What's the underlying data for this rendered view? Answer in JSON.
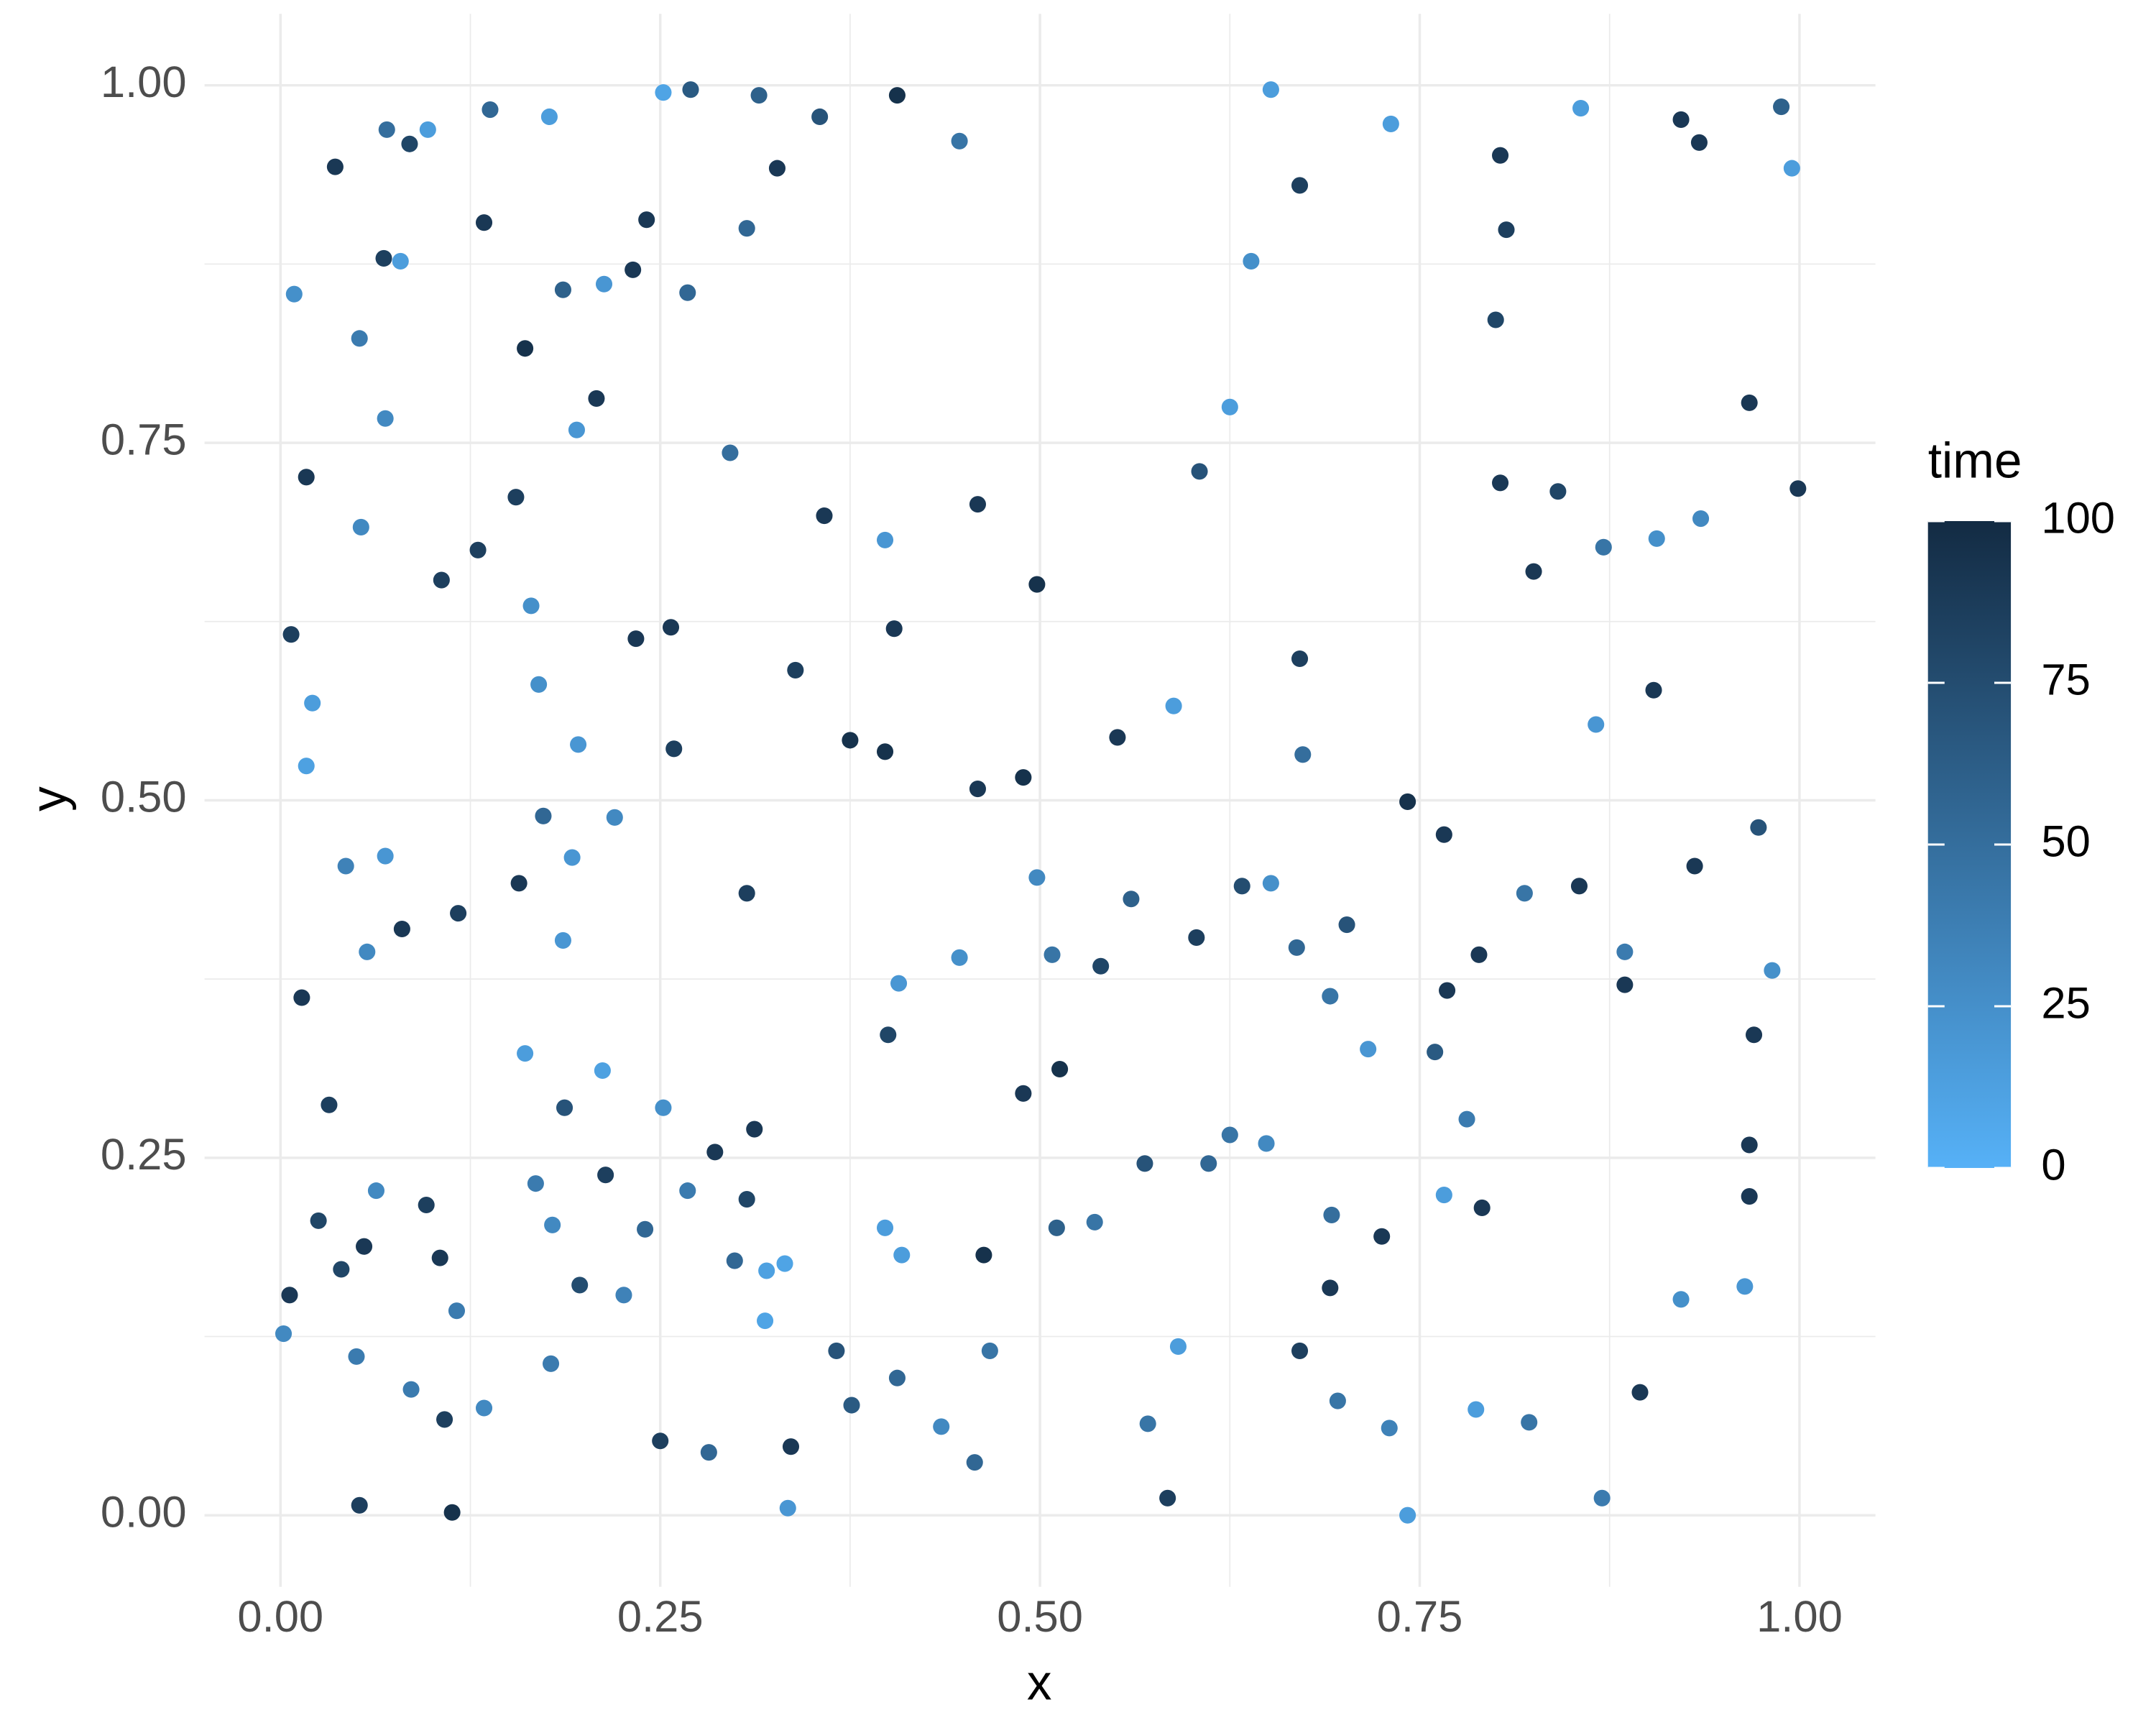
{
  "chart_data": {
    "type": "scatter",
    "x_label": "x",
    "y_label": "y",
    "xlim": [
      -0.05,
      1.05
    ],
    "ylim": [
      -0.05,
      1.05
    ],
    "xticks": [
      {
        "value": 0,
        "label": "0.00"
      },
      {
        "value": 0.25,
        "label": "0.25"
      },
      {
        "value": 0.5,
        "label": "0.50"
      },
      {
        "value": 0.75,
        "label": "0.75"
      },
      {
        "value": 1,
        "label": "1.00"
      }
    ],
    "yticks": [
      {
        "value": 0,
        "label": "0.00"
      },
      {
        "value": 0.25,
        "label": "0.25"
      },
      {
        "value": 0.5,
        "label": "0.50"
      },
      {
        "value": 0.75,
        "label": "0.75"
      },
      {
        "value": 1,
        "label": "1.00"
      }
    ],
    "grid": true,
    "minor_grid": true,
    "legend": "right",
    "color_scale": {
      "title": "time",
      "lim": [
        0,
        100
      ],
      "ticks": [
        0,
        25,
        50,
        75,
        100
      ],
      "low": "#56B1F7",
      "high": "#132B43"
    },
    "series": [
      {
        "x": [
          0.009,
          0.017,
          0.007,
          0.021,
          0.017,
          0.014,
          0.032,
          0.025,
          0.006,
          0.002,
          0.052,
          0.113,
          0.036,
          0.07,
          0.085,
          0.097,
          0.138,
          0.177,
          0.252,
          0.27,
          0.315,
          0.355,
          0.406,
          0.447,
          0.241,
          0.068,
          0.079,
          0.134,
          0.161,
          0.186,
          0.213,
          0.232,
          0.268,
          0.307,
          0.327,
          0.052,
          0.069,
          0.053,
          0.106,
          0.13,
          0.155,
          0.165,
          0.17,
          0.196,
          0.234,
          0.208,
          0.195,
          0.257,
          0.259,
          0.296,
          0.339,
          0.358,
          0.398,
          0.375,
          0.398,
          0.459,
          0.498,
          0.551,
          0.588,
          0.605,
          0.625,
          0.639,
          0.652,
          0.671,
          0.731,
          0.803,
          0.807,
          0.8,
          0.856,
          0.922,
          0.934,
          0.988,
          0.995,
          0.967,
          0.999,
          0.935,
          0.904,
          0.931,
          0.973,
          0.982,
          0.97,
          0.967,
          0.967,
          0.964,
          0.922,
          0.895,
          0.87,
          0.742,
          0.73,
          0.787,
          0.822,
          0.791,
          0.766,
          0.781,
          0.76,
          0.716,
          0.789,
          0.768,
          0.766,
          0.742,
          0.673,
          0.671,
          0.803,
          0.841,
          0.825,
          0.871,
          0.906,
          0.866,
          0.885,
          0.885,
          0.855,
          0.819,
          0.671,
          0.584,
          0.571,
          0.591,
          0.611,
          0.625,
          0.649,
          0.696,
          0.463,
          0.489,
          0.513,
          0.511,
          0.536,
          0.569,
          0.32,
          0.332,
          0.319,
          0.299,
          0.286,
          0.312,
          0.307,
          0.268,
          0.24,
          0.214,
          0.226,
          0.212,
          0.187,
          0.161,
          0.168,
          0.197,
          0.179,
          0.178,
          0.108,
          0.116,
          0.105,
          0.096,
          0.063,
          0.055,
          0.04,
          0.05,
          0.086,
          0.134,
          0.25,
          0.282,
          0.334,
          0.336,
          0.366,
          0.376,
          0.406,
          0.435,
          0.457,
          0.467,
          0.398,
          0.409,
          0.4,
          0.407,
          0.447,
          0.498,
          0.508,
          0.54,
          0.56,
          0.603,
          0.633,
          0.652,
          0.669,
          0.691,
          0.702,
          0.459,
          0.489,
          0.404,
          0.307,
          0.22,
          0.192,
          0.173,
          0.186,
          0.157,
          0.117,
          0.08,
          0.057,
          0.043,
          0.069,
          0.252,
          0.725,
          0.692,
          0.691
        ],
        "values": [
          0.854,
          0.726,
          0.616,
          0.568,
          0.524,
          0.362,
          0.287,
          0.206,
          0.154,
          0.127,
          0.007,
          0.002,
          0.943,
          0.969,
          0.959,
          0.969,
          0.983,
          0.978,
          0.995,
          0.997,
          0.993,
          0.978,
          0.993,
          0.961,
          0.906,
          0.879,
          0.877,
          0.904,
          0.816,
          0.857,
          0.861,
          0.871,
          0.855,
          0.9,
          0.942,
          0.823,
          0.767,
          0.691,
          0.654,
          0.675,
          0.712,
          0.636,
          0.581,
          0.539,
          0.613,
          0.781,
          0.759,
          0.621,
          0.536,
          0.743,
          0.591,
          0.699,
          0.682,
          0.542,
          0.534,
          0.707,
          0.651,
          0.544,
          0.566,
          0.73,
          0.775,
          0.877,
          0.997,
          0.93,
          0.973,
          0.951,
          0.899,
          0.836,
          0.984,
          0.976,
          0.96,
          0.985,
          0.942,
          0.778,
          0.718,
          0.697,
          0.577,
          0.454,
          0.481,
          0.381,
          0.336,
          0.259,
          0.223,
          0.16,
          0.151,
          0.086,
          0.012,
          0.0,
          0.061,
          0.074,
          0.065,
          0.215,
          0.224,
          0.277,
          0.324,
          0.326,
          0.392,
          0.367,
          0.476,
          0.499,
          0.532,
          0.599,
          0.722,
          0.716,
          0.66,
          0.677,
          0.683,
          0.553,
          0.394,
          0.371,
          0.44,
          0.435,
          0.115,
          0.012,
          0.064,
          0.118,
          0.246,
          0.266,
          0.26,
          0.08,
          0.182,
          0.295,
          0.312,
          0.201,
          0.205,
          0.246,
          0.171,
          0.176,
          0.136,
          0.178,
          0.254,
          0.27,
          0.221,
          0.227,
          0.2,
          0.238,
          0.154,
          0.311,
          0.285,
          0.323,
          0.232,
          0.161,
          0.203,
          0.106,
          0.067,
          0.143,
          0.18,
          0.217,
          0.227,
          0.188,
          0.172,
          0.111,
          0.088,
          0.075,
          0.052,
          0.044,
          0.005,
          0.048,
          0.115,
          0.077,
          0.096,
          0.062,
          0.037,
          0.115,
          0.201,
          0.182,
          0.336,
          0.372,
          0.39,
          0.446,
          0.392,
          0.384,
          0.431,
          0.404,
          0.44,
          0.442,
          0.397,
          0.363,
          0.413,
          0.508,
          0.516,
          0.62,
          0.435,
          0.488,
          0.46,
          0.489,
          0.402,
          0.442,
          0.421,
          0.41,
          0.394,
          0.454,
          0.461,
          0.285,
          0.195,
          0.21,
          0.159
        ],
        "time": [
          25,
          90,
          85,
          15,
          12,
          90,
          85,
          80,
          90,
          30,
          85,
          95,
          90,
          50,
          80,
          15,
          55,
          15,
          10,
          65,
          60,
          70,
          95,
          45,
          90,
          85,
          15,
          90,
          95,
          60,
          20,
          90,
          55,
          55,
          90,
          40,
          30,
          30,
          85,
          85,
          85,
          25,
          25,
          20,
          90,
          90,
          20,
          90,
          85,
          50,
          85,
          90,
          20,
          95,
          95,
          90,
          95,
          90,
          15,
          70,
          15,
          25,
          15,
          85,
          15,
          90,
          85,
          80,
          15,
          90,
          90,
          60,
          15,
          90,
          90,
          30,
          90,
          90,
          70,
          25,
          90,
          90,
          90,
          20,
          25,
          90,
          40,
          15,
          35,
          15,
          45,
          90,
          15,
          40,
          65,
          20,
          90,
          90,
          90,
          95,
          50,
          85,
          90,
          80,
          90,
          45,
          25,
          20,
          40,
          90,
          90,
          45,
          85,
          85,
          45,
          15,
          55,
          45,
          30,
          45,
          95,
          90,
          95,
          60,
          45,
          70,
          12,
          10,
          10,
          55,
          90,
          90,
          80,
          40,
          55,
          85,
          35,
          12,
          70,
          15,
          40,
          75,
          30,
          40,
          85,
          40,
          90,
          85,
          30,
          90,
          80,
          40,
          40,
          30,
          85,
          55,
          20,
          90,
          70,
          65,
          55,
          30,
          55,
          45,
          15,
          15,
          80,
          20,
          25,
          30,
          45,
          80,
          60,
          85,
          75,
          25,
          55,
          45,
          70,
          90,
          95,
          90,
          85,
          30,
          20,
          55,
          20,
          90,
          85,
          90,
          30,
          35,
          20,
          25,
          90,
          50,
          90
        ]
      }
    ]
  }
}
